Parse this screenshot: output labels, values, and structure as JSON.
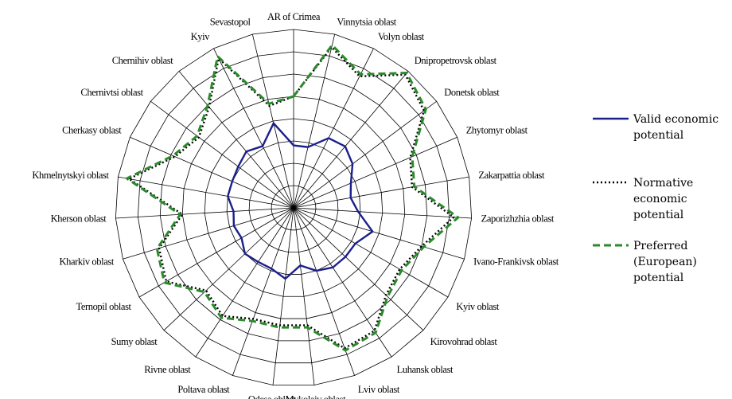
{
  "chart_data": {
    "type": "radar",
    "title": "",
    "grid": true,
    "legend_position": "right",
    "rmax": 8,
    "rings": 8,
    "categories": [
      "AR of Crimea",
      "Vinnytsia oblast",
      "Volyn oblast",
      "Dnipropetrovsk oblast",
      "Donetsk oblast",
      "Zhytomyr oblast",
      "Zakarpattia oblast",
      "Zaporizhzhia oblast",
      "Ivano-Frankivsk oblast",
      "Kyiv oblast",
      "Kirovohrad oblast",
      "Luhansk oblast",
      "Lviv oblast",
      "Mykolaiv oblast",
      "Odesa oblast",
      "Poltava oblast",
      "Rivne oblast",
      "Sumy oblast",
      "Ternopil oblast",
      "Kharkiv oblast",
      "Kherson oblast",
      "Khmelnytskyi oblast",
      "Cherkasy oblast",
      "Chernivtsi oblast",
      "Chernihiv oblast",
      "Kyiv",
      "Sevastopol"
    ],
    "series": [
      {
        "name": "Valid economic potential",
        "color": "#1a1f8c",
        "style": "solid",
        "values": [
          2.8,
          2.8,
          3.5,
          3.6,
          3.3,
          2.8,
          2.6,
          2.9,
          3.7,
          3.2,
          3.2,
          3.2,
          3.0,
          2.6,
          3.2,
          2.9,
          2.9,
          3.0,
          2.7,
          2.8,
          2.7,
          3.0,
          3.0,
          3.1,
          3.3,
          3.1,
          3.9
        ]
      },
      {
        "name": "Normative economic potential",
        "color": "#000000",
        "style": "dotted",
        "values": [
          5.0,
          7.4,
          6.6,
          7.8,
          7.3,
          5.7,
          5.4,
          7.2,
          6.0,
          5.5,
          5.7,
          6.6,
          6.7,
          5.3,
          5.3,
          5.3,
          5.8,
          5.4,
          6.6,
          6.3,
          5.0,
          7.5,
          5.8,
          5.3,
          5.9,
          7.5,
          4.7
        ]
      },
      {
        "name": "Preferred (European) potential",
        "color": "#2b8a2b",
        "style": "dashed",
        "values": [
          5.0,
          7.5,
          6.7,
          7.9,
          7.4,
          5.8,
          5.5,
          7.4,
          6.1,
          5.6,
          5.8,
          6.7,
          6.8,
          5.4,
          5.4,
          5.4,
          5.9,
          5.5,
          6.7,
          6.4,
          5.1,
          7.6,
          5.9,
          5.4,
          6.0,
          7.6,
          4.8
        ]
      }
    ]
  },
  "legend": [
    {
      "lines": [
        "Valid economic",
        "potential"
      ]
    },
    {
      "lines": [
        "Normative",
        "economic",
        "potential"
      ]
    },
    {
      "lines": [
        "Preferred",
        "(European)",
        "potential"
      ]
    }
  ]
}
